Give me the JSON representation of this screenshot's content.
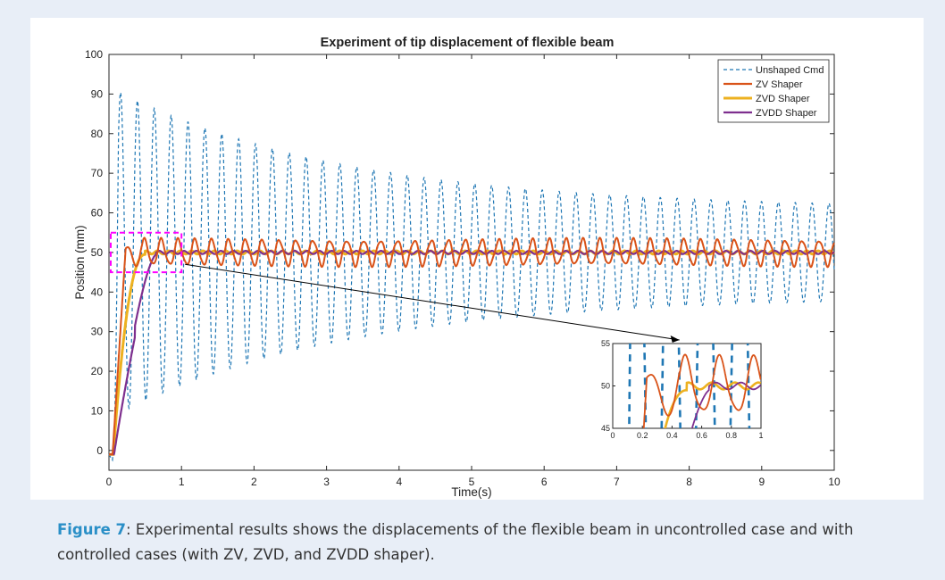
{
  "colors": {
    "background": "#e8eef7",
    "panel": "#ffffff",
    "unshaped": "#1f77b4",
    "zv": "#d95319",
    "zvd": "#edb120",
    "zvdd": "#7e2f8e",
    "zoom_box": "#ff00ff",
    "caption_label": "#2a8fc7"
  },
  "caption": {
    "label": "Figure 7",
    "text": ": Experimental results shows the displacements of the flexible beam in uncontrolled case and with controlled cases (with ZV, ZVD, and ZVDD shaper)."
  },
  "chart_data": {
    "type": "line",
    "title": "Experiment of tip displacement of flexible beam",
    "xlabel": "Time(s)",
    "ylabel": "Position (mm)",
    "xlim": [
      0,
      10
    ],
    "ylim": [
      -5,
      100
    ],
    "xticks": [
      "0",
      "1",
      "2",
      "3",
      "4",
      "5",
      "6",
      "7",
      "8",
      "9",
      "10"
    ],
    "yticks": [
      "0",
      "10",
      "20",
      "30",
      "40",
      "50",
      "60",
      "70",
      "80",
      "90",
      "100"
    ],
    "grid": false,
    "legend_position": "top-right",
    "series": [
      {
        "name": "Unshaped Cmd",
        "style": "dashed",
        "color": "#1f77b4",
        "model": {
          "setpoint": 50,
          "initial_amplitude": 40,
          "final_amplitude": 11,
          "frequency_hz": 4.3
        }
      },
      {
        "name": "ZV Shaper",
        "style": "solid",
        "color": "#d95319",
        "model": {
          "setpoint": 50,
          "residual_amplitude": 3.2,
          "frequency_hz": 4.3
        }
      },
      {
        "name": "ZVD Shaper",
        "style": "solid",
        "color": "#edb120",
        "model": {
          "setpoint": 50,
          "residual_amplitude": 0.4
        }
      },
      {
        "name": "ZVDD Shaper",
        "style": "solid",
        "color": "#7e2f8e",
        "model": {
          "setpoint": 50,
          "residual_amplitude": 0.4
        }
      }
    ],
    "zoom_region": {
      "x": [
        0,
        1
      ],
      "y": [
        45,
        55
      ]
    },
    "inset": {
      "xlim": [
        0,
        1
      ],
      "ylim": [
        45,
        55
      ],
      "xticks": [
        "0",
        "0.2",
        "0.4",
        "0.6",
        "0.8",
        "1"
      ],
      "yticks": [
        "45",
        "50",
        "55"
      ]
    }
  }
}
